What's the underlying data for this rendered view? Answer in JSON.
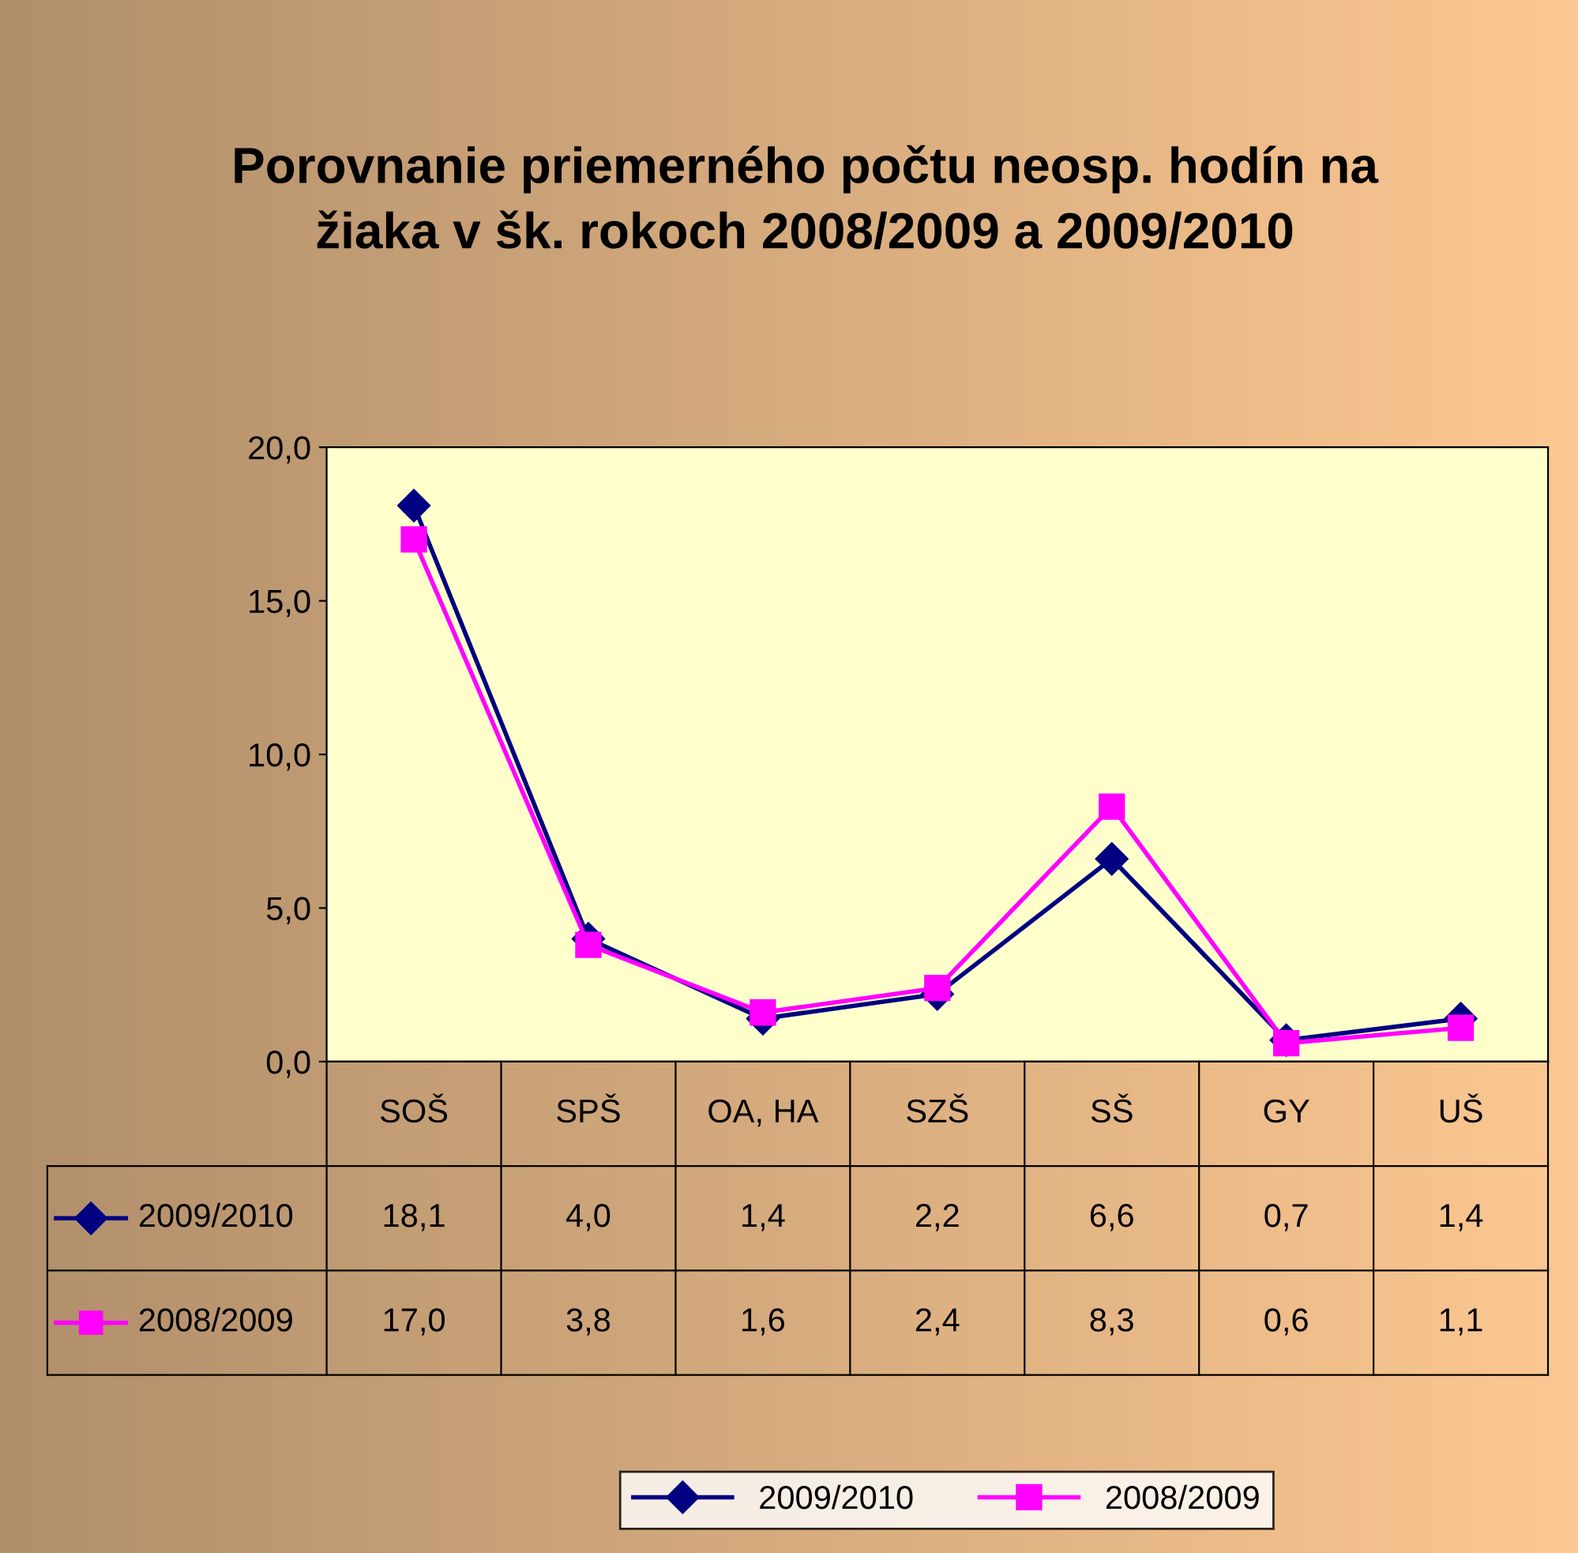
{
  "chart_data": {
    "type": "line",
    "title": "Porovnanie priemerného počtu neosp. hodín na\nžiaka v šk. rokoch 2008/2009 a 2009/2010",
    "categories": [
      "SOŠ",
      "SPŠ",
      "OA, HA",
      "SZŠ",
      "SŠ",
      "GY",
      "UŠ"
    ],
    "series": [
      {
        "name": "2009/2010",
        "color": "#000080",
        "marker": "diamond",
        "values": [
          18.1,
          4.0,
          1.4,
          2.2,
          6.6,
          0.7,
          1.4
        ],
        "value_labels": [
          "18,1",
          "4,0",
          "1,4",
          "2,2",
          "6,6",
          "0,7",
          "1,4"
        ]
      },
      {
        "name": "2008/2009",
        "color": "#ff00ff",
        "marker": "square",
        "values": [
          17.0,
          3.8,
          1.6,
          2.4,
          8.3,
          0.6,
          1.1
        ],
        "value_labels": [
          "17,0",
          "3,8",
          "1,6",
          "2,4",
          "8,3",
          "0,6",
          "1,1"
        ]
      }
    ],
    "ylim": [
      0,
      20
    ],
    "yticks": [
      {
        "value": 0,
        "label": "0,0"
      },
      {
        "value": 5,
        "label": "5,0"
      },
      {
        "value": 10,
        "label": "10,0"
      },
      {
        "value": 15,
        "label": "15,0"
      },
      {
        "value": 20,
        "label": "20,0"
      }
    ],
    "grid": false,
    "legend": "bottom",
    "line_style": "solid"
  }
}
